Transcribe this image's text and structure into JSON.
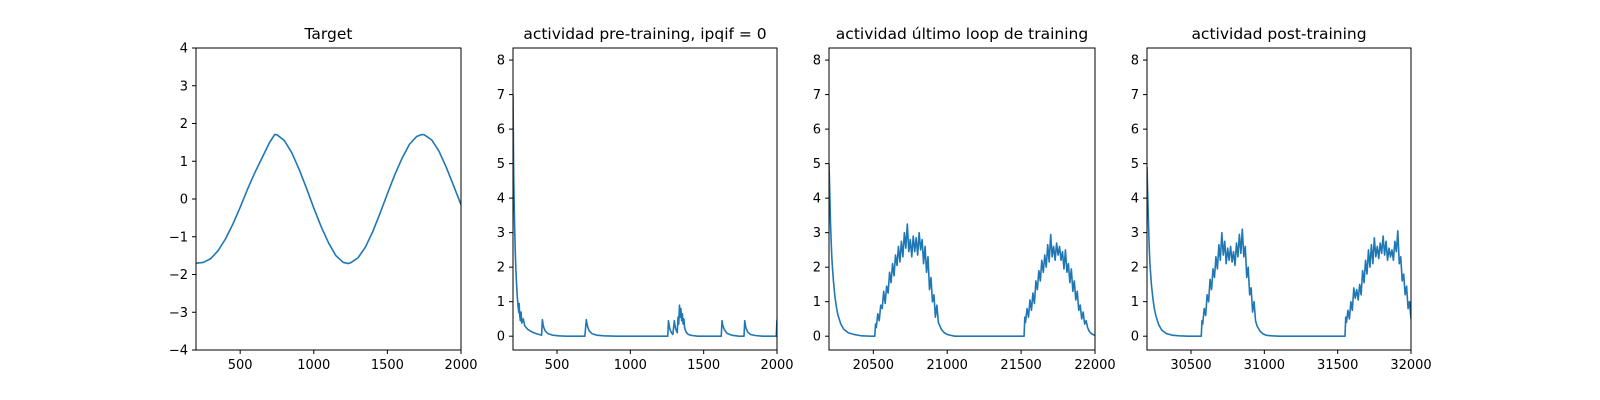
{
  "colors": {
    "series": "#1f77b4",
    "axes": "#000000",
    "background": "#ffffff"
  },
  "chart_data": [
    {
      "type": "line",
      "title": "Target",
      "xlabel": "",
      "ylabel": "",
      "xlim": [
        200,
        2000
      ],
      "ylim": [
        -4,
        4
      ],
      "xticks": [
        500,
        1000,
        1500,
        2000
      ],
      "xtick_labels": [
        "500",
        "1000",
        "1500",
        "2000"
      ],
      "yticks": [
        -4,
        -3,
        -2,
        -1,
        0,
        1,
        2,
        3,
        4
      ],
      "ytick_labels": [
        "−4",
        "−3",
        "−2",
        "−1",
        "0",
        "1",
        "2",
        "3",
        "4"
      ],
      "grid": false,
      "series": [
        {
          "x": [
            200,
            250,
            300,
            350,
            400,
            450,
            500,
            550,
            600,
            650,
            700,
            735,
            750,
            800,
            850,
            900,
            950,
            1000,
            1050,
            1100,
            1150,
            1200,
            1235,
            1250,
            1300,
            1350,
            1400,
            1450,
            1500,
            1550,
            1600,
            1650,
            1700,
            1735,
            1750,
            1800,
            1850,
            1900,
            1950,
            2000
          ],
          "y": [
            -1.7,
            -1.68,
            -1.58,
            -1.37,
            -1.06,
            -0.67,
            -0.22,
            0.26,
            0.7,
            1.1,
            1.5,
            1.71,
            1.7,
            1.55,
            1.23,
            0.79,
            0.29,
            -0.24,
            -0.73,
            -1.16,
            -1.5,
            -1.68,
            -1.71,
            -1.69,
            -1.56,
            -1.28,
            -0.87,
            -0.38,
            0.14,
            0.64,
            1.08,
            1.45,
            1.66,
            1.71,
            1.7,
            1.57,
            1.27,
            0.84,
            0.35,
            -0.15
          ]
        }
      ]
    },
    {
      "type": "line",
      "title": "actividad pre-training, ipqif = 0",
      "xlabel": "",
      "ylabel": "",
      "xlim": [
        200,
        2000
      ],
      "ylim": [
        -0.4,
        8.35
      ],
      "xticks": [
        500,
        1000,
        1500,
        2000
      ],
      "xtick_labels": [
        "500",
        "1000",
        "1500",
        "2000"
      ],
      "yticks": [
        0,
        1,
        2,
        3,
        4,
        5,
        6,
        7,
        8
      ],
      "ytick_labels": [
        "0",
        "1",
        "2",
        "3",
        "4",
        "5",
        "6",
        "7",
        "8"
      ],
      "grid": false,
      "series": [
        {
          "x": [
            200,
            202,
            205,
            210,
            215,
            220,
            225,
            230,
            235,
            240,
            242,
            246,
            250,
            255,
            260,
            270,
            280,
            300,
            330,
            360,
            395,
            400,
            405,
            410,
            420,
            440,
            470,
            510,
            560,
            620,
            690,
            700,
            705,
            710,
            720,
            740,
            770,
            820,
            900,
            1000,
            1100,
            1200,
            1255,
            1260,
            1265,
            1270,
            1280,
            1290,
            1300,
            1305,
            1310,
            1320,
            1325,
            1330,
            1335,
            1340,
            1345,
            1350,
            1355,
            1360,
            1365,
            1370,
            1380,
            1395,
            1420,
            1460,
            1520,
            1580,
            1620,
            1625,
            1630,
            1640,
            1660,
            1690,
            1740,
            1775,
            1780,
            1785,
            1790,
            1800,
            1820,
            1850,
            1900,
            1950,
            1995,
            2000
          ],
          "y": [
            7.0,
            6.0,
            4.6,
            3.4,
            2.5,
            1.9,
            1.45,
            1.1,
            0.85,
            0.68,
            0.95,
            0.6,
            0.45,
            0.7,
            0.38,
            0.5,
            0.3,
            0.2,
            0.12,
            0.07,
            0.03,
            0.48,
            0.35,
            0.25,
            0.15,
            0.07,
            0.03,
            0.01,
            0.0,
            0.0,
            0.0,
            0.48,
            0.35,
            0.26,
            0.15,
            0.07,
            0.03,
            0.01,
            0.0,
            0.0,
            0.0,
            0.0,
            0.0,
            0.45,
            0.3,
            0.2,
            0.1,
            0.05,
            0.45,
            0.3,
            0.2,
            0.1,
            0.55,
            0.35,
            0.9,
            0.55,
            0.8,
            0.45,
            0.65,
            0.35,
            0.5,
            0.25,
            0.12,
            0.05,
            0.02,
            0.0,
            0.0,
            0.0,
            0.0,
            0.45,
            0.32,
            0.2,
            0.08,
            0.03,
            0.0,
            0.0,
            0.45,
            0.3,
            0.22,
            0.12,
            0.05,
            0.02,
            0.0,
            0.0,
            0.0,
            0.48
          ]
        }
      ]
    },
    {
      "type": "line",
      "title": "actividad último loop de training",
      "xlabel": "",
      "ylabel": "",
      "xlim": [
        20200,
        22000
      ],
      "ylim": [
        -0.4,
        8.35
      ],
      "xticks": [
        20500,
        21000,
        21500,
        22000
      ],
      "xtick_labels": [
        "20500",
        "21000",
        "21500",
        "22000"
      ],
      "yticks": [
        0,
        1,
        2,
        3,
        4,
        5,
        6,
        7,
        8
      ],
      "ytick_labels": [
        "0",
        "1",
        "2",
        "3",
        "4",
        "5",
        "6",
        "7",
        "8"
      ],
      "grid": false,
      "series": [
        {
          "x": [
            20200,
            20205,
            20210,
            20215,
            20220,
            20230,
            20240,
            20250,
            20260,
            20280,
            20300,
            20330,
            20370,
            20420,
            20480,
            20510,
            20515,
            20520,
            20530,
            20540,
            20550,
            20560,
            20570,
            20580,
            20590,
            20600,
            20610,
            20620,
            20630,
            20640,
            20650,
            20660,
            20670,
            20680,
            20690,
            20700,
            20710,
            20720,
            20730,
            20740,
            20750,
            20760,
            20770,
            20780,
            20790,
            20800,
            20810,
            20820,
            20830,
            20840,
            20850,
            20860,
            20870,
            20880,
            20890,
            20900,
            20910,
            20920,
            20930,
            20940,
            20960,
            20980,
            21000,
            21050,
            21100,
            21200,
            21300,
            21400,
            21500,
            21520,
            21525,
            21530,
            21540,
            21550,
            21560,
            21570,
            21580,
            21590,
            21600,
            21610,
            21620,
            21630,
            21640,
            21650,
            21660,
            21670,
            21680,
            21690,
            21700,
            21710,
            21720,
            21730,
            21740,
            21750,
            21760,
            21770,
            21780,
            21790,
            21800,
            21810,
            21820,
            21830,
            21840,
            21850,
            21860,
            21870,
            21880,
            21890,
            21900,
            21910,
            21920,
            21930,
            21940,
            21950,
            21960,
            21970,
            21980,
            21990,
            22000
          ],
          "y": [
            5.0,
            4.2,
            3.3,
            2.7,
            2.2,
            1.6,
            1.15,
            0.85,
            0.62,
            0.35,
            0.2,
            0.1,
            0.05,
            0.01,
            0.0,
            0.0,
            0.35,
            0.25,
            0.65,
            0.45,
            0.9,
            0.8,
            1.3,
            0.95,
            1.45,
            1.25,
            1.85,
            1.55,
            2.1,
            1.75,
            2.35,
            2.05,
            2.6,
            2.15,
            2.75,
            2.3,
            3.0,
            2.55,
            3.25,
            2.45,
            2.8,
            2.3,
            2.9,
            2.45,
            2.85,
            2.35,
            3.0,
            2.5,
            2.8,
            2.1,
            2.6,
            1.85,
            2.3,
            1.35,
            1.7,
            1.0,
            1.2,
            0.55,
            0.9,
            0.4,
            0.2,
            0.1,
            0.05,
            0.0,
            0.0,
            0.0,
            0.0,
            0.0,
            0.0,
            0.0,
            0.55,
            0.4,
            0.8,
            0.55,
            1.05,
            0.75,
            1.25,
            0.95,
            1.6,
            1.35,
            1.9,
            1.6,
            2.2,
            1.85,
            2.35,
            2.0,
            2.65,
            2.15,
            2.95,
            2.3,
            2.6,
            2.2,
            2.7,
            2.35,
            2.6,
            2.2,
            2.45,
            1.95,
            2.5,
            1.85,
            2.1,
            1.55,
            1.95,
            1.3,
            1.6,
            1.05,
            1.3,
            0.75,
            0.9,
            0.5,
            0.7,
            0.35,
            0.45,
            0.25,
            0.15,
            0.1,
            0.06,
            0.04,
            0.03
          ]
        }
      ]
    },
    {
      "type": "line",
      "title": "actividad post-training",
      "xlabel": "",
      "ylabel": "",
      "xlim": [
        30200,
        32000
      ],
      "ylim": [
        -0.4,
        8.35
      ],
      "xticks": [
        30500,
        31000,
        31500,
        32000
      ],
      "xtick_labels": [
        "30500",
        "31000",
        "31500",
        "32000"
      ],
      "yticks": [
        0,
        1,
        2,
        3,
        4,
        5,
        6,
        7,
        8
      ],
      "ytick_labels": [
        "0",
        "1",
        "2",
        "3",
        "4",
        "5",
        "6",
        "7",
        "8"
      ],
      "grid": false,
      "series": [
        {
          "x": [
            30200,
            30205,
            30210,
            30215,
            30220,
            30230,
            30240,
            30250,
            30260,
            30280,
            30300,
            30330,
            30370,
            30420,
            30480,
            30540,
            30570,
            30575,
            30580,
            30590,
            30600,
            30610,
            30620,
            30630,
            30640,
            30650,
            30660,
            30670,
            30680,
            30690,
            30700,
            30710,
            30720,
            30730,
            30740,
            30750,
            30760,
            30770,
            30780,
            30790,
            30800,
            30810,
            30820,
            30830,
            30840,
            30850,
            30860,
            30870,
            30880,
            30890,
            30900,
            30910,
            30920,
            30930,
            30940,
            30950,
            30970,
            30990,
            31010,
            31050,
            31100,
            31200,
            31300,
            31400,
            31500,
            31550,
            31555,
            31560,
            31570,
            31580,
            31590,
            31600,
            31610,
            31620,
            31630,
            31640,
            31650,
            31660,
            31670,
            31680,
            31690,
            31700,
            31710,
            31720,
            31730,
            31740,
            31750,
            31760,
            31770,
            31780,
            31790,
            31800,
            31810,
            31820,
            31830,
            31840,
            31850,
            31860,
            31870,
            31880,
            31890,
            31900,
            31910,
            31920,
            31930,
            31940,
            31950,
            31960,
            31970,
            31980,
            31990,
            32000
          ],
          "y": [
            4.9,
            4.1,
            3.3,
            2.6,
            2.1,
            1.5,
            1.1,
            0.8,
            0.6,
            0.33,
            0.18,
            0.08,
            0.03,
            0.01,
            0.0,
            0.0,
            0.0,
            0.45,
            0.35,
            0.8,
            0.6,
            1.2,
            1.0,
            1.65,
            1.35,
            1.95,
            1.7,
            2.3,
            1.95,
            2.65,
            2.2,
            3.0,
            2.35,
            2.75,
            2.1,
            2.55,
            2.2,
            2.6,
            2.15,
            2.45,
            2.05,
            2.7,
            2.3,
            2.95,
            2.4,
            3.1,
            2.3,
            2.6,
            1.7,
            2.0,
            1.2,
            1.4,
            0.7,
            1.0,
            0.45,
            0.3,
            0.15,
            0.07,
            0.03,
            0.01,
            0.0,
            0.0,
            0.0,
            0.0,
            0.0,
            0.0,
            0.55,
            0.4,
            0.75,
            0.5,
            1.0,
            0.75,
            1.4,
            1.1,
            1.35,
            1.05,
            1.5,
            1.2,
            1.9,
            1.55,
            2.2,
            1.8,
            2.5,
            2.0,
            2.65,
            2.1,
            2.85,
            2.3,
            2.6,
            2.25,
            2.7,
            2.4,
            2.9,
            2.35,
            2.75,
            2.2,
            2.55,
            2.3,
            2.5,
            2.2,
            2.75,
            2.45,
            3.05,
            2.1,
            2.3,
            1.6,
            1.8,
            1.2,
            1.45,
            0.8,
            1.0,
            0.5
          ]
        }
      ]
    }
  ]
}
